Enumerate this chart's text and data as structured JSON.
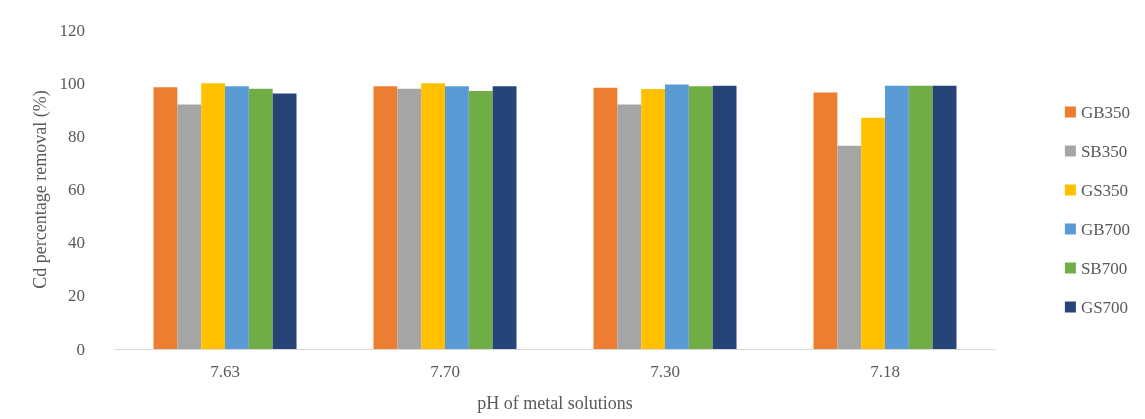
{
  "chart_data": {
    "type": "bar",
    "xlabel": "pH of metal solutions",
    "ylabel": "Cd percentage removal (%)",
    "categories": [
      "7.63",
      "7.70",
      "7.30",
      "7.18"
    ],
    "series": [
      {
        "name": "GB350",
        "color": "#ed7d31",
        "values": [
          98.5,
          98.8,
          98.3,
          96.5
        ]
      },
      {
        "name": "SB350",
        "color": "#a5a5a5",
        "values": [
          92,
          97.9,
          92,
          76.5
        ]
      },
      {
        "name": "GS350",
        "color": "#ffc000",
        "values": [
          100,
          100,
          97.8,
          87
        ]
      },
      {
        "name": "GB700",
        "color": "#5b9bd5",
        "values": [
          98.8,
          98.8,
          99.5,
          99
        ]
      },
      {
        "name": "SB700",
        "color": "#70ad47",
        "values": [
          97.9,
          97.1,
          98.8,
          99
        ]
      },
      {
        "name": "GS700",
        "color": "#264478",
        "values": [
          96.1,
          98.8,
          99,
          99
        ]
      }
    ],
    "ylim": [
      0,
      120
    ],
    "yticks": [
      0,
      20,
      40,
      60,
      80,
      100,
      120
    ],
    "grid": false,
    "legend": "right"
  }
}
